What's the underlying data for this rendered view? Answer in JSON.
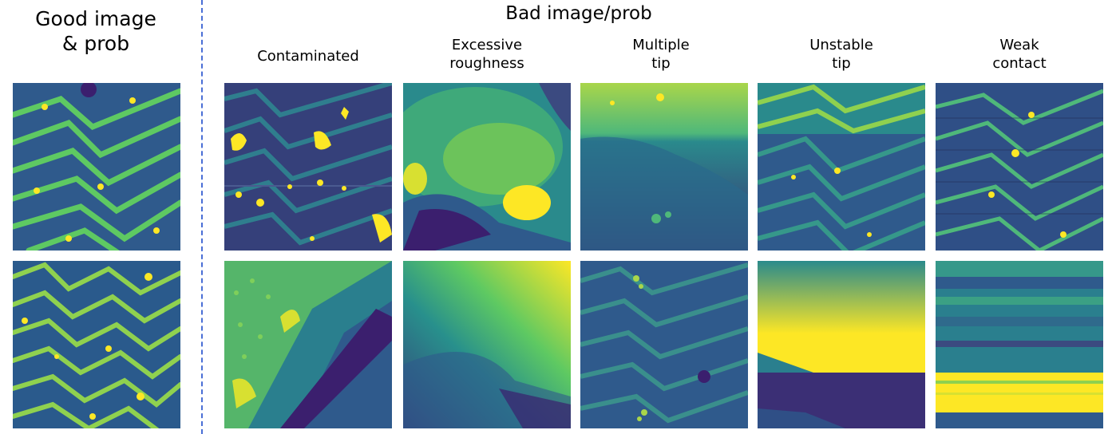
{
  "headers": {
    "good": "Good image\n& prob",
    "bad": "Bad image/prob"
  },
  "columns": [
    {
      "title": "Contaminated"
    },
    {
      "title": "Excessive\nroughness"
    },
    {
      "title": "Multiple\ntip"
    },
    {
      "title": "Unstable\ntip"
    },
    {
      "title": "Weak\ncontact"
    }
  ],
  "colormap": {
    "dark": "#3b1f6e",
    "mid_dark": "#2f5a8c",
    "mid": "#28908c",
    "light": "#5ec962",
    "bright": "#fde725",
    "divider": "#4a6fd6"
  }
}
